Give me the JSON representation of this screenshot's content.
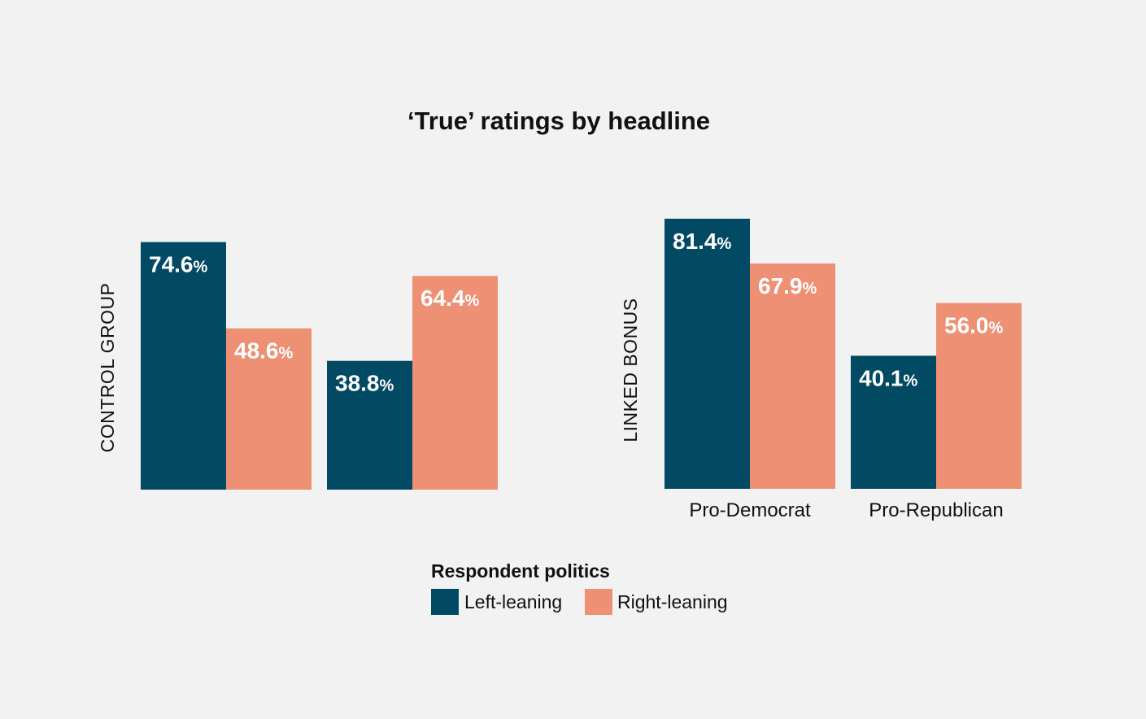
{
  "colors": {
    "background": "#f2f2f2",
    "left_leaning": "#024a63",
    "right_leaning": "#ee9074",
    "text": "#111111"
  },
  "chart_data": {
    "type": "bar",
    "title": "‘True’ ratings by headline",
    "unit": "%",
    "categories": [
      "Pro-Democrat",
      "Pro-Republican"
    ],
    "legend": {
      "title": "Respondent politics",
      "position": "bottom-center",
      "entries": [
        "Left-leaning",
        "Right-leaning"
      ]
    },
    "ylim": [
      0,
      100
    ],
    "grid": false,
    "panels": [
      {
        "label": "CONTROL GROUP",
        "series": [
          {
            "name": "Left-leaning",
            "values": [
              74.6,
              38.8
            ],
            "labels": [
              "74.6",
              "38.8"
            ]
          },
          {
            "name": "Right-leaning",
            "values": [
              48.6,
              64.4
            ],
            "labels": [
              "48.6",
              "64.4"
            ]
          }
        ]
      },
      {
        "label": "LINKED BONUS",
        "series": [
          {
            "name": "Left-leaning",
            "values": [
              81.4,
              40.1
            ],
            "labels": [
              "81.4",
              "40.1"
            ]
          },
          {
            "name": "Right-leaning",
            "values": [
              67.9,
              56.0
            ],
            "labels": [
              "67.9",
              "56.0"
            ]
          }
        ]
      }
    ]
  }
}
